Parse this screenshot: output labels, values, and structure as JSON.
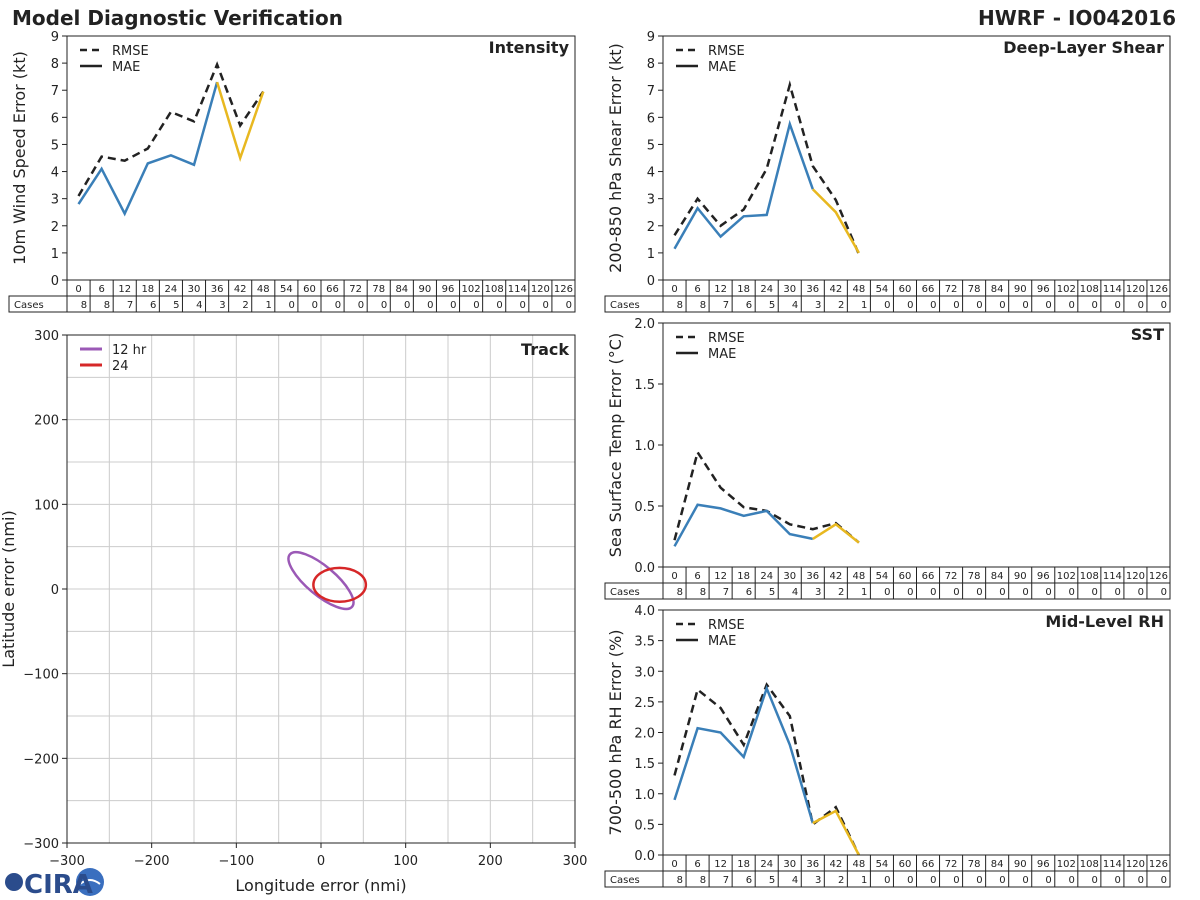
{
  "header": {
    "title": "Model Diagnostic Verification",
    "storm": "HWRF - IO042016"
  },
  "logo": {
    "text": "CIRA"
  },
  "colors": {
    "observed": "#3a7fb8",
    "extrapolated": "#e8b820",
    "rmse": "#222222",
    "mae": "#222222",
    "ellipse_12": "#9b59b6",
    "ellipse_24": "#d62728"
  },
  "legend": {
    "rmse": "RMSE",
    "mae": "MAE",
    "track_12": "12 hr",
    "track_24": "24"
  },
  "table": {
    "cases_label": "Cases",
    "hours": [
      "0",
      "6",
      "12",
      "18",
      "24",
      "30",
      "36",
      "42",
      "48",
      "54",
      "60",
      "66",
      "72",
      "78",
      "84",
      "90",
      "96",
      "102",
      "108",
      "114",
      "120",
      "126"
    ],
    "cases": [
      "8",
      "8",
      "7",
      "6",
      "5",
      "4",
      "3",
      "2",
      "1",
      "0",
      "0",
      "0",
      "0",
      "0",
      "0",
      "0",
      "0",
      "0",
      "0",
      "0",
      "0",
      "0"
    ]
  },
  "chart_data": [
    {
      "id": "intensity",
      "type": "line",
      "title": "Intensity",
      "ylabel": "10m Wind Speed Error (kt)",
      "ylim": [
        0,
        9
      ],
      "yticks": [
        "0",
        "1",
        "2",
        "3",
        "4",
        "5",
        "6",
        "7",
        "8",
        "9"
      ],
      "x": [
        0,
        6,
        12,
        18,
        24,
        30,
        36,
        42,
        48
      ],
      "series": [
        {
          "name": "RMSE",
          "values": [
            3.1,
            4.55,
            4.4,
            4.85,
            6.2,
            5.85,
            7.95,
            5.7,
            6.95
          ]
        },
        {
          "name": "MAE",
          "values": [
            2.8,
            4.1,
            2.45,
            4.3,
            4.6,
            4.25,
            7.3,
            4.5,
            6.95
          ]
        }
      ]
    },
    {
      "id": "shear",
      "type": "line",
      "title": "Deep-Layer Shear",
      "ylabel": "200-850 hPa Shear Error (kt)",
      "ylim": [
        0,
        9
      ],
      "yticks": [
        "0",
        "1",
        "2",
        "3",
        "4",
        "5",
        "6",
        "7",
        "8",
        "9"
      ],
      "x": [
        0,
        6,
        12,
        18,
        24,
        30,
        36,
        42,
        48
      ],
      "series": [
        {
          "name": "RMSE",
          "values": [
            1.65,
            3.0,
            2.0,
            2.6,
            4.1,
            7.2,
            4.2,
            2.95,
            0.95
          ]
        },
        {
          "name": "MAE",
          "values": [
            1.15,
            2.65,
            1.6,
            2.35,
            2.4,
            5.75,
            3.35,
            2.5,
            1.0
          ]
        }
      ]
    },
    {
      "id": "sst",
      "type": "line",
      "title": "SST",
      "ylabel": "Sea Surface Temp Error (°C)",
      "ylim": [
        0,
        2
      ],
      "yticks": [
        "0.0",
        "0.5",
        "1.0",
        "1.5",
        "2.0"
      ],
      "x": [
        0,
        6,
        12,
        18,
        24,
        30,
        36,
        42,
        48
      ],
      "series": [
        {
          "name": "RMSE",
          "values": [
            0.22,
            0.94,
            0.65,
            0.49,
            0.46,
            0.35,
            0.31,
            0.36,
            0.2
          ]
        },
        {
          "name": "MAE",
          "values": [
            0.17,
            0.51,
            0.48,
            0.42,
            0.46,
            0.27,
            0.23,
            0.35,
            0.2
          ]
        }
      ]
    },
    {
      "id": "rh",
      "type": "line",
      "title": "Mid-Level RH",
      "ylabel": "700-500 hPa RH Error (%)",
      "ylim": [
        0,
        4
      ],
      "yticks": [
        "0.0",
        "0.5",
        "1.0",
        "1.5",
        "2.0",
        "2.5",
        "3.0",
        "3.5",
        "4.0"
      ],
      "x": [
        0,
        6,
        12,
        18,
        24,
        30,
        36,
        42,
        48
      ],
      "series": [
        {
          "name": "RMSE",
          "values": [
            1.3,
            2.7,
            2.4,
            1.8,
            2.78,
            2.27,
            0.5,
            0.78,
            0.0
          ]
        },
        {
          "name": "MAE",
          "values": [
            0.9,
            2.07,
            2.0,
            1.6,
            2.72,
            1.8,
            0.52,
            0.72,
            0.0
          ]
        }
      ]
    },
    {
      "id": "track",
      "type": "scatter",
      "title": "Track",
      "xlabel": "Longitude error (nmi)",
      "ylabel": "Latitude error (nmi)",
      "xlim": [
        -300,
        300
      ],
      "ylim": [
        -300,
        300
      ],
      "xticks": [
        "−300",
        "−200",
        "−100",
        "0",
        "100",
        "200",
        "300"
      ],
      "yticks": [
        "−300",
        "−200",
        "−100",
        "0",
        "100",
        "200",
        "300"
      ],
      "ellipses": [
        {
          "name": "12 hr",
          "cx": 0,
          "cy": 10,
          "rx": 48,
          "ry": 17,
          "angle_deg": -40
        },
        {
          "name": "24",
          "cx": 22,
          "cy": 5,
          "rx": 31,
          "ry": 20,
          "angle_deg": 0
        }
      ]
    }
  ]
}
